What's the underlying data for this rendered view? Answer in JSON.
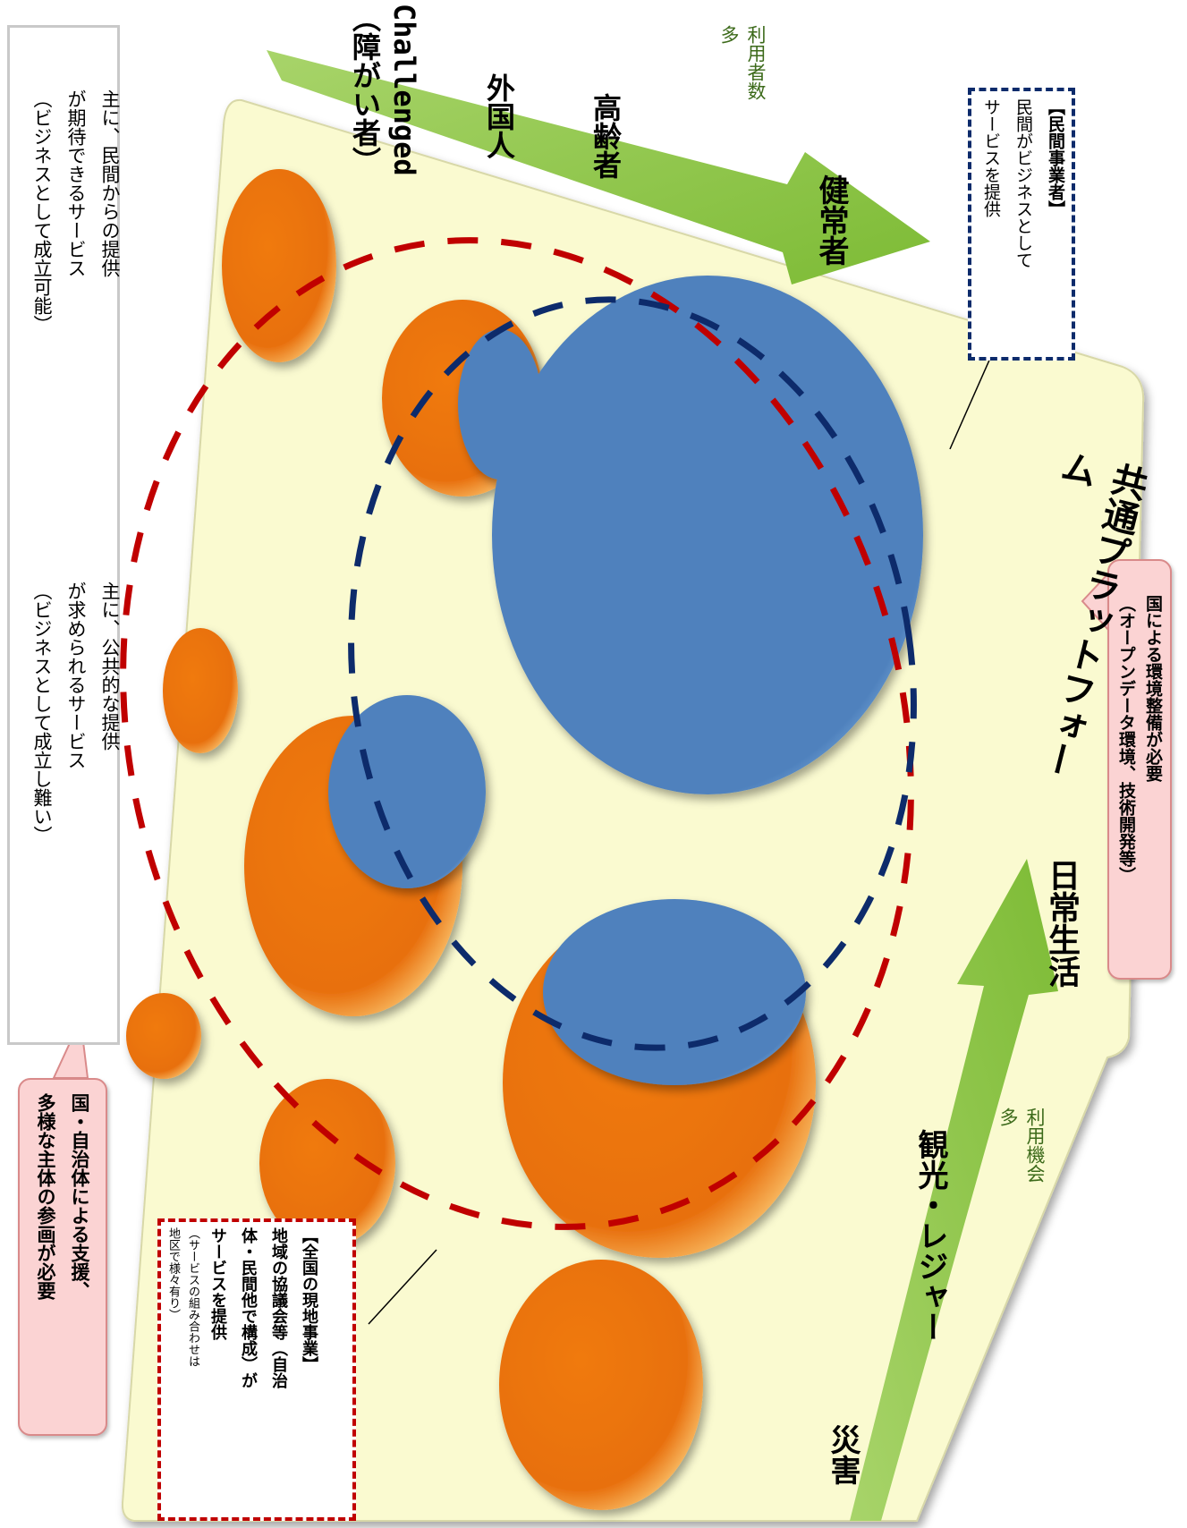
{
  "legend": {
    "public_service_text": [
      "主に、公共的な提供",
      "が求められるサービス",
      "（ビジネスとして成立し難い）"
    ],
    "private_service_text": [
      "主に、民間からの提供",
      "が期待できるサービス",
      "（ビジネスとして成立可能）"
    ]
  },
  "callouts": {
    "national_support": [
      "国・自治体による支援、",
      "多様な主体の参画が必要"
    ],
    "national_environment": [
      "国による環境整備が必要",
      "（オープンデータ環境、技術開発等）"
    ]
  },
  "regional_operators": {
    "title": "【全国の現地事業】",
    "lines": [
      "地域の協議会等（自治",
      "体・民間他で構成）が",
      "サービスを提供"
    ],
    "note": [
      "（サービスの組み合わせは",
      "地区で様々有り）"
    ]
  },
  "private_operators": {
    "title": "【民間事業者】",
    "lines": [
      "民間がビジネスとして",
      "サービスを提供"
    ]
  },
  "user_axis": {
    "labels": [
      "Challenged",
      "（障がい者）",
      "外国人",
      "高齢者",
      "健常者"
    ],
    "count_label": [
      "利用者数",
      "多"
    ]
  },
  "opportunity_axis": {
    "labels": [
      "災害",
      "観光・レジャー",
      "日常生活"
    ],
    "count_label": [
      "利用機会",
      "多"
    ]
  },
  "platform_label": "共通プラットフォーム",
  "colors": {
    "orange": "#e8700e",
    "blue": "#4f81bd",
    "platform": "#fafad0",
    "green": "#8cc63f",
    "red_dash": "#c00000",
    "navy_dash": "#0d2b6b",
    "pink": "#fbd3d3"
  }
}
